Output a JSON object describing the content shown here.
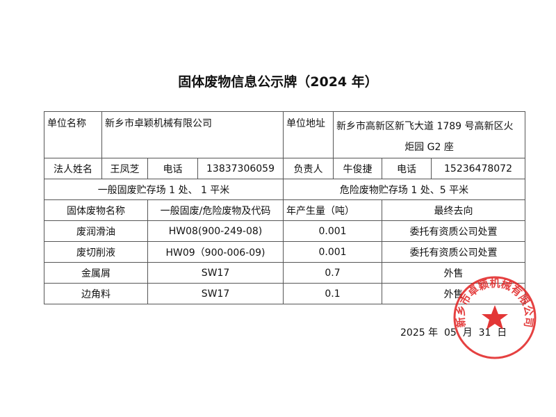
{
  "title": "固体废物信息公示牌（2024 年）",
  "info": {
    "unit_name_label": "单位名称",
    "unit_name": "新乡市卓颖机械有限公司",
    "unit_address_label": "单位地址",
    "unit_address_line1": "新乡市高新区新飞大道 1789 号高新区火",
    "unit_address_line2": "炬园 G2 座",
    "legal_rep_label": "法人姓名",
    "legal_rep": "王凤芝",
    "phone_label": "电话",
    "legal_phone": "13837306059",
    "manager_label": "负责人",
    "manager": "牛俊捷",
    "manager_phone": "15236478072",
    "general_storage": "一般固废贮存场 1 处、 1 平米",
    "hazard_storage": "危险废物贮存场 1 处、5 平米"
  },
  "waste_table": {
    "headers": [
      "固体废物名称",
      "一般固废/危险废物及代码",
      "年产生量（吨）",
      "最终去向"
    ],
    "rows": [
      [
        "废润滑油",
        "HW08(900-249-08)",
        "0.001",
        "委托有资质公司处置"
      ],
      [
        "废切削液",
        "HW09（900-006-09)",
        "0.001",
        "委托有资质公司处置"
      ],
      [
        "金属屑",
        "SW17",
        "0.7",
        "外售"
      ],
      [
        "边角料",
        "SW17",
        "0.1",
        "外售"
      ]
    ]
  },
  "date": "2025 年  05  月  31  日",
  "stamp": {
    "text": "新乡市卓颖机械有限公司",
    "color": "#e02020"
  }
}
